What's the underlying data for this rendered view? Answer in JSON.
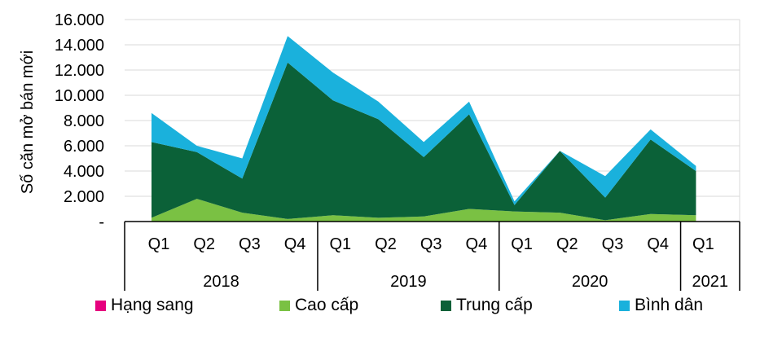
{
  "chart_data": {
    "type": "area",
    "stacked": true,
    "ylabel": "Số căn mở bán mới",
    "ylim": [
      0,
      16000
    ],
    "yticks": [
      0,
      2000,
      4000,
      6000,
      8000,
      10000,
      12000,
      14000,
      16000
    ],
    "ytick_labels": [
      "-",
      "2.000",
      "4.000",
      "6.000",
      "8.000",
      "10.000",
      "12.000",
      "14.000",
      "16.000"
    ],
    "categories": [
      "Q1",
      "Q2",
      "Q3",
      "Q4",
      "Q1",
      "Q2",
      "Q3",
      "Q4",
      "Q1",
      "Q2",
      "Q3",
      "Q4",
      "Q1"
    ],
    "year_groups": [
      {
        "label": "2018",
        "count": 4
      },
      {
        "label": "2019",
        "count": 4
      },
      {
        "label": "2020",
        "count": 4
      },
      {
        "label": "2021",
        "count": 1
      }
    ],
    "grid": true,
    "legend_position": "bottom",
    "series": [
      {
        "name": "Hạng sang",
        "color": "#e6007e",
        "values": [
          0,
          0,
          0,
          0,
          0,
          0,
          0,
          0,
          0,
          0,
          0,
          0,
          0
        ]
      },
      {
        "name": "Cao cấp",
        "color": "#7ac143",
        "values": [
          300,
          1800,
          700,
          200,
          500,
          300,
          400,
          1000,
          800,
          700,
          100,
          600,
          500
        ]
      },
      {
        "name": "Trung cấp",
        "color": "#0b6138",
        "values": [
          6000,
          3700,
          2700,
          12400,
          9100,
          7800,
          4700,
          7500,
          500,
          4900,
          1800,
          5900,
          3500
        ]
      },
      {
        "name": "Bình dân",
        "color": "#1ab1dc",
        "values": [
          2300,
          500,
          1600,
          2100,
          2200,
          1400,
          1200,
          1000,
          300,
          0,
          1700,
          800,
          400
        ]
      }
    ]
  }
}
